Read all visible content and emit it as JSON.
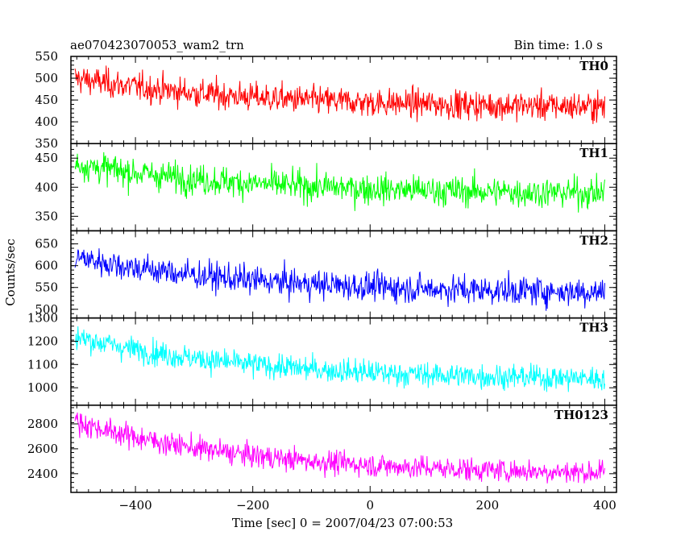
{
  "chart_data": {
    "type": "line",
    "title": "ae070423070053_wam2_trn",
    "subtitle": "Bin time: 1.0 s",
    "xlabel": "Time [sec] 0 = 2007/04/23 07:00:53",
    "ylabel": "Counts/sec",
    "x": {
      "start": -503,
      "end": 400,
      "step": 1
    },
    "xlim": [
      -510,
      420
    ],
    "xticks": [
      -400,
      -200,
      0,
      200,
      400
    ],
    "grid": false,
    "panels": [
      {
        "name": "TH0",
        "color": "#ff0000",
        "ylim": [
          350,
          550
        ],
        "yticks": [
          350,
          400,
          450,
          500,
          550
        ],
        "trend": [
          500,
          435
        ],
        "noise": 28
      },
      {
        "name": "TH1",
        "color": "#00ff00",
        "ylim": [
          325,
          475
        ],
        "yticks": [
          350,
          400,
          450
        ],
        "trend": [
          440,
          390
        ],
        "noise": 22
      },
      {
        "name": "TH2",
        "color": "#0000ff",
        "ylim": [
          480,
          680
        ],
        "yticks": [
          500,
          550,
          600,
          650
        ],
        "trend": [
          620,
          540
        ],
        "noise": 28
      },
      {
        "name": "TH3",
        "color": "#00ffff",
        "ylim": [
          925,
          1300
        ],
        "yticks": [
          1000,
          1100,
          1200,
          1300
        ],
        "trend": [
          1220,
          1040
        ],
        "noise": 45
      },
      {
        "name": "TH0123",
        "color": "#ff00ff",
        "ylim": [
          2250,
          2950
        ],
        "yticks": [
          2400,
          2600,
          2800
        ],
        "trend": [
          2820,
          2410
        ],
        "noise": 80
      }
    ]
  }
}
